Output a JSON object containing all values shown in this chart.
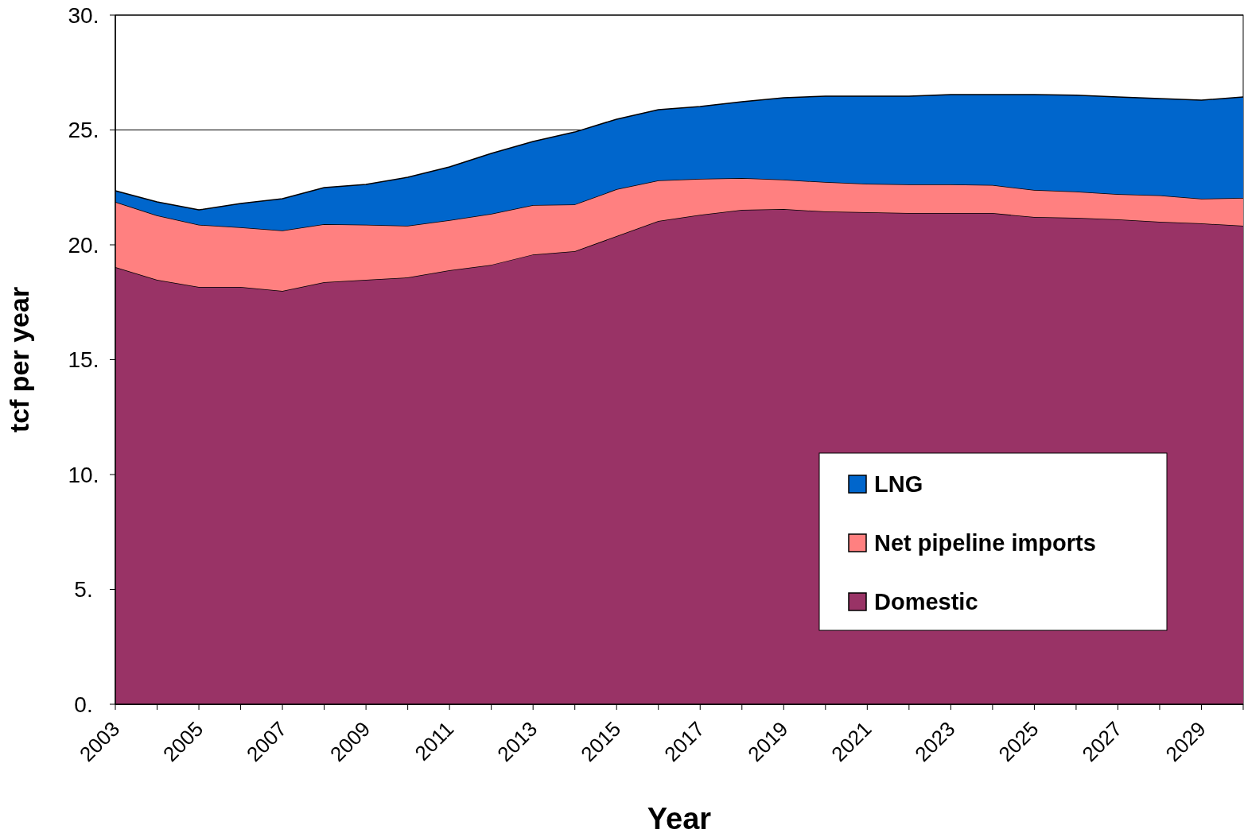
{
  "chart_data": {
    "type": "area",
    "stacked": true,
    "xlabel": "Year",
    "ylabel": "tcf per year",
    "x": [
      2003,
      2004,
      2005,
      2006,
      2007,
      2008,
      2009,
      2010,
      2011,
      2012,
      2013,
      2014,
      2015,
      2016,
      2017,
      2018,
      2019,
      2020,
      2021,
      2022,
      2023,
      2024,
      2025,
      2026,
      2027,
      2028,
      2029,
      2030
    ],
    "series": [
      {
        "name": "Domestic",
        "color": "#993366",
        "values": [
          19.03,
          18.48,
          18.17,
          18.17,
          17.99,
          18.37,
          18.48,
          18.58,
          18.89,
          19.13,
          19.58,
          19.72,
          20.38,
          21.04,
          21.31,
          21.52,
          21.56,
          21.45,
          21.42,
          21.38,
          21.38,
          21.38,
          21.21,
          21.18,
          21.11,
          21.0,
          20.93,
          20.83
        ]
      },
      {
        "name": "Net pipeline imports",
        "color": "#ff8080",
        "values": [
          2.84,
          2.8,
          2.7,
          2.59,
          2.63,
          2.53,
          2.39,
          2.25,
          2.18,
          2.22,
          2.15,
          2.04,
          2.04,
          1.76,
          1.56,
          1.39,
          1.28,
          1.28,
          1.24,
          1.25,
          1.25,
          1.22,
          1.18,
          1.14,
          1.1,
          1.15,
          1.08,
          1.21
        ]
      },
      {
        "name": "LNG",
        "color": "#0066cc",
        "values": [
          0.48,
          0.59,
          0.65,
          1.04,
          1.39,
          1.59,
          1.76,
          2.11,
          2.32,
          2.63,
          2.77,
          3.15,
          3.05,
          3.08,
          3.15,
          3.32,
          3.56,
          3.74,
          3.81,
          3.84,
          3.91,
          3.94,
          4.15,
          4.19,
          4.23,
          4.22,
          4.29,
          4.4
        ]
      }
    ],
    "xlim": [
      2003,
      2030
    ],
    "xticks": [
      2003,
      {
        "value": 2004,
        "label": null
      },
      2005,
      {
        "value": 2006,
        "label": null
      },
      2007,
      {
        "value": 2008,
        "label": null
      },
      2009,
      {
        "value": 2010,
        "label": null
      },
      2011,
      {
        "value": 2012,
        "label": null
      },
      2013,
      {
        "value": 2014,
        "label": null
      },
      2015,
      {
        "value": 2016,
        "label": null
      },
      2017,
      {
        "value": 2018,
        "label": null
      },
      2019,
      {
        "value": 2020,
        "label": null
      },
      2021,
      {
        "value": 2022,
        "label": null
      },
      2023,
      {
        "value": 2024,
        "label": null
      },
      2025,
      {
        "value": 2026,
        "label": null
      },
      2027,
      {
        "value": 2028,
        "label": null
      },
      2029,
      {
        "value": 2030,
        "label": null
      }
    ],
    "ylim": [
      0,
      30
    ],
    "yticks": [
      {
        "value": 0,
        "label": "0."
      },
      {
        "value": 5,
        "label": "5."
      },
      {
        "value": 10,
        "label": "10."
      },
      {
        "value": 15,
        "label": "15."
      },
      {
        "value": 20,
        "label": "20."
      },
      {
        "value": 25,
        "label": "25."
      },
      {
        "value": 30,
        "label": "30."
      }
    ],
    "grid": "y",
    "legend": "bottom right"
  }
}
